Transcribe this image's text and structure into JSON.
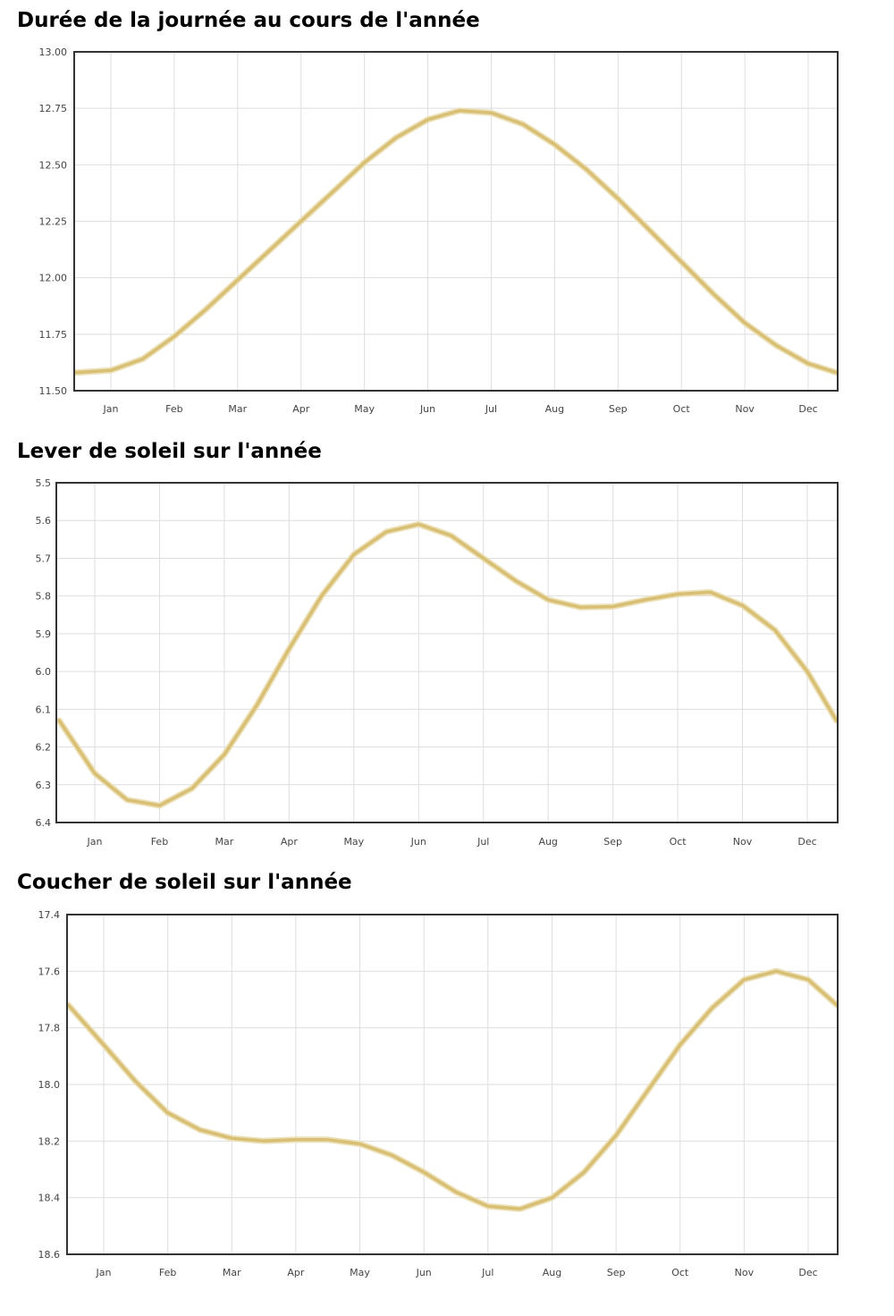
{
  "chart_data": [
    {
      "type": "line",
      "title": "Durée de la journée au cours de l'année",
      "categories": [
        "Jan",
        "Feb",
        "Mar",
        "Apr",
        "May",
        "Jun",
        "Jul",
        "Aug",
        "Sep",
        "Oct",
        "Nov",
        "Dec"
      ],
      "y_ticks": [
        "13.00",
        "12.75",
        "12.50",
        "12.25",
        "12.00",
        "11.75",
        "11.50"
      ],
      "ylim": [
        11.5,
        13.0
      ],
      "y_inverted": false,
      "grid": true,
      "x": [
        -0.55,
        0.0,
        0.5,
        1.0,
        1.5,
        2.0,
        2.5,
        3.0,
        3.5,
        4.0,
        4.5,
        5.0,
        5.5,
        6.0,
        6.5,
        7.0,
        7.5,
        8.0,
        8.5,
        9.0,
        9.5,
        10.0,
        10.5,
        11.0,
        11.45
      ],
      "series": [
        {
          "values": [
            11.58,
            11.59,
            11.64,
            11.74,
            11.86,
            11.99,
            12.12,
            12.25,
            12.38,
            12.51,
            12.62,
            12.7,
            12.74,
            12.73,
            12.68,
            12.59,
            12.48,
            12.35,
            12.21,
            12.07,
            11.93,
            11.8,
            11.7,
            11.62,
            11.58
          ]
        }
      ]
    },
    {
      "type": "line",
      "title": "Lever de soleil sur l'année",
      "categories": [
        "Jan",
        "Feb",
        "Mar",
        "Apr",
        "May",
        "Jun",
        "Jul",
        "Aug",
        "Sep",
        "Oct",
        "Nov",
        "Dec"
      ],
      "y_ticks": [
        "5.5",
        "5.6",
        "5.7",
        "5.8",
        "5.9",
        "6.0",
        "6.1",
        "6.2",
        "6.3",
        "6.4"
      ],
      "ylim": [
        5.5,
        6.4
      ],
      "y_inverted": true,
      "grid": true,
      "x": [
        -0.55,
        0.0,
        0.5,
        1.0,
        1.5,
        2.0,
        2.5,
        3.0,
        3.5,
        4.0,
        4.5,
        5.0,
        5.5,
        6.0,
        6.5,
        7.0,
        7.5,
        8.0,
        8.5,
        9.0,
        9.5,
        10.0,
        10.5,
        11.0,
        11.45
      ],
      "series": [
        {
          "values": [
            6.13,
            6.27,
            6.34,
            6.355,
            6.31,
            6.22,
            6.09,
            5.94,
            5.8,
            5.69,
            5.63,
            5.61,
            5.64,
            5.7,
            5.76,
            5.81,
            5.83,
            5.828,
            5.81,
            5.795,
            5.79,
            5.825,
            5.89,
            6.0,
            6.13
          ]
        }
      ]
    },
    {
      "type": "line",
      "title": "Coucher de soleil sur l'année",
      "categories": [
        "Jan",
        "Feb",
        "Mar",
        "Apr",
        "May",
        "Jun",
        "Jul",
        "Aug",
        "Sep",
        "Oct",
        "Nov",
        "Dec"
      ],
      "y_ticks": [
        "17.4",
        "17.6",
        "17.8",
        "18.0",
        "18.2",
        "18.4",
        "18.6"
      ],
      "ylim": [
        17.4,
        18.6
      ],
      "y_inverted": true,
      "grid": true,
      "x": [
        -0.55,
        0.0,
        0.5,
        1.0,
        1.5,
        2.0,
        2.5,
        3.0,
        3.5,
        4.0,
        4.5,
        5.0,
        5.5,
        6.0,
        6.5,
        7.0,
        7.5,
        8.0,
        8.5,
        9.0,
        9.5,
        10.0,
        10.5,
        11.0,
        11.45
      ],
      "series": [
        {
          "values": [
            17.72,
            17.86,
            17.99,
            18.1,
            18.16,
            18.19,
            18.2,
            18.195,
            18.195,
            18.21,
            18.25,
            18.31,
            18.38,
            18.43,
            18.44,
            18.4,
            18.31,
            18.18,
            18.02,
            17.86,
            17.73,
            17.63,
            17.6,
            17.63,
            17.72
          ]
        }
      ]
    }
  ],
  "style": {
    "line_color": "#d8bf74",
    "glow_color": "#ece0b7",
    "grid_color": "#dedede",
    "frame_color": "#333333"
  }
}
